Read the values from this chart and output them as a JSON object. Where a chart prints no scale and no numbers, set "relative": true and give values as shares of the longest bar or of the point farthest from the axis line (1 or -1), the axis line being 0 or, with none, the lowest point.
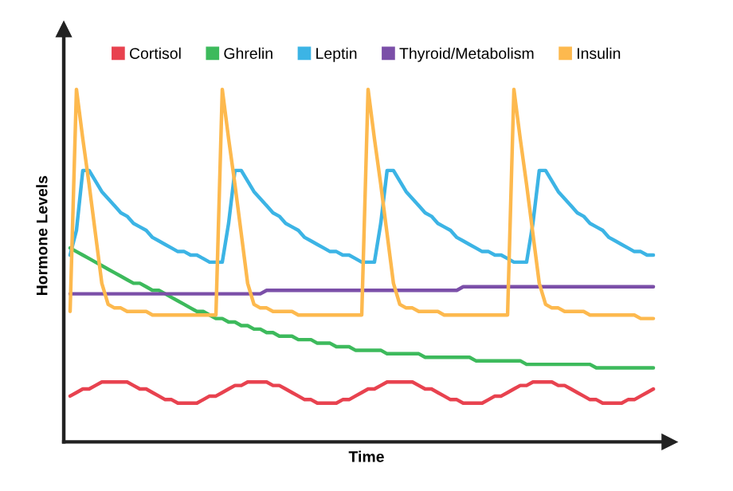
{
  "chart_data": {
    "type": "line",
    "relative": true,
    "xlabel": "Time",
    "ylabel": "Hormone Levels",
    "legend": "top",
    "categories": [
      null,
      null,
      null,
      null,
      null,
      null,
      null,
      null,
      null,
      null,
      null,
      null,
      null,
      null,
      null,
      null,
      null,
      null,
      null,
      null,
      null,
      null,
      null,
      null,
      null,
      null,
      null,
      null,
      null,
      null,
      null,
      null,
      null,
      null,
      null,
      null,
      null,
      null,
      null,
      null,
      null,
      null,
      null,
      null,
      null,
      null,
      null,
      null,
      null,
      null,
      null,
      null,
      null,
      null,
      null,
      null,
      null,
      null,
      null,
      null,
      null,
      null,
      null,
      null,
      null,
      null,
      null,
      null,
      null,
      null,
      null,
      null,
      null,
      null,
      null,
      null,
      null,
      null,
      null,
      null,
      null,
      null,
      null,
      null,
      null,
      null,
      null,
      null,
      null,
      null,
      null,
      null,
      null
    ],
    "series": [
      {
        "name": "Cortisol",
        "color": "#e8424f",
        "values": [
          0.13,
          0.14,
          0.15,
          0.15,
          0.16,
          0.17,
          0.17,
          0.17,
          0.17,
          0.17,
          0.16,
          0.15,
          0.15,
          0.14,
          0.13,
          0.12,
          0.12,
          0.11,
          0.11,
          0.11,
          0.11,
          0.12,
          0.13,
          0.13,
          0.14,
          0.15,
          0.16,
          0.16,
          0.17,
          0.17,
          0.17,
          0.17,
          0.16,
          0.16,
          0.15,
          0.14,
          0.13,
          0.12,
          0.12,
          0.11,
          0.11,
          0.11,
          0.11,
          0.12,
          0.12,
          0.13,
          0.14,
          0.15,
          0.15,
          0.16,
          0.17,
          0.17,
          0.17,
          0.17,
          0.17,
          0.16,
          0.15,
          0.15,
          0.14,
          0.13,
          0.12,
          0.12,
          0.11,
          0.11,
          0.11,
          0.11,
          0.12,
          0.13,
          0.13,
          0.14,
          0.15,
          0.16,
          0.16,
          0.17,
          0.17,
          0.17,
          0.17,
          0.16,
          0.16,
          0.15,
          0.14,
          0.13,
          0.12,
          0.12,
          0.11,
          0.11,
          0.11,
          0.11,
          0.12,
          0.12,
          0.13,
          0.14,
          0.15
        ]
      },
      {
        "name": "Ghrelin",
        "color": "#3dba5c",
        "values": [
          0.55,
          0.54,
          0.53,
          0.52,
          0.51,
          0.5,
          0.49,
          0.48,
          0.47,
          0.46,
          0.45,
          0.45,
          0.44,
          0.43,
          0.43,
          0.42,
          0.41,
          0.4,
          0.39,
          0.38,
          0.37,
          0.37,
          0.36,
          0.35,
          0.35,
          0.34,
          0.34,
          0.33,
          0.33,
          0.32,
          0.32,
          0.31,
          0.31,
          0.3,
          0.3,
          0.3,
          0.29,
          0.29,
          0.29,
          0.28,
          0.28,
          0.28,
          0.27,
          0.27,
          0.27,
          0.26,
          0.26,
          0.26,
          0.26,
          0.26,
          0.25,
          0.25,
          0.25,
          0.25,
          0.25,
          0.25,
          0.24,
          0.24,
          0.24,
          0.24,
          0.24,
          0.24,
          0.24,
          0.24,
          0.23,
          0.23,
          0.23,
          0.23,
          0.23,
          0.23,
          0.23,
          0.23,
          0.22,
          0.22,
          0.22,
          0.22,
          0.22,
          0.22,
          0.22,
          0.22,
          0.22,
          0.22,
          0.22,
          0.21,
          0.21,
          0.21,
          0.21,
          0.21,
          0.21,
          0.21,
          0.21,
          0.21,
          0.21
        ]
      },
      {
        "name": "Leptin",
        "color": "#3cb4e5",
        "values": [
          0.53,
          0.6,
          0.77,
          0.77,
          0.74,
          0.71,
          0.69,
          0.67,
          0.65,
          0.64,
          0.62,
          0.61,
          0.6,
          0.58,
          0.57,
          0.56,
          0.55,
          0.54,
          0.54,
          0.53,
          0.53,
          0.52,
          0.51,
          0.51,
          0.51,
          0.62,
          0.77,
          0.77,
          0.74,
          0.71,
          0.69,
          0.67,
          0.65,
          0.64,
          0.62,
          0.61,
          0.6,
          0.58,
          0.57,
          0.56,
          0.55,
          0.54,
          0.54,
          0.53,
          0.53,
          0.52,
          0.51,
          0.51,
          0.51,
          0.62,
          0.77,
          0.77,
          0.74,
          0.71,
          0.69,
          0.67,
          0.65,
          0.64,
          0.62,
          0.61,
          0.6,
          0.58,
          0.57,
          0.56,
          0.55,
          0.54,
          0.54,
          0.53,
          0.53,
          0.52,
          0.51,
          0.51,
          0.51,
          0.62,
          0.77,
          0.77,
          0.74,
          0.71,
          0.69,
          0.67,
          0.65,
          0.64,
          0.62,
          0.61,
          0.6,
          0.58,
          0.57,
          0.56,
          0.55,
          0.54,
          0.54,
          0.53,
          0.53
        ]
      },
      {
        "name": "Thyroid/Metabolism",
        "color": "#7b4fa8",
        "values": [
          0.42,
          0.42,
          0.42,
          0.42,
          0.42,
          0.42,
          0.42,
          0.42,
          0.42,
          0.42,
          0.42,
          0.42,
          0.42,
          0.42,
          0.42,
          0.42,
          0.42,
          0.42,
          0.42,
          0.42,
          0.42,
          0.42,
          0.42,
          0.42,
          0.42,
          0.42,
          0.42,
          0.42,
          0.42,
          0.42,
          0.42,
          0.43,
          0.43,
          0.43,
          0.43,
          0.43,
          0.43,
          0.43,
          0.43,
          0.43,
          0.43,
          0.43,
          0.43,
          0.43,
          0.43,
          0.43,
          0.43,
          0.43,
          0.43,
          0.43,
          0.43,
          0.43,
          0.43,
          0.43,
          0.43,
          0.43,
          0.43,
          0.43,
          0.43,
          0.43,
          0.43,
          0.43,
          0.44,
          0.44,
          0.44,
          0.44,
          0.44,
          0.44,
          0.44,
          0.44,
          0.44,
          0.44,
          0.44,
          0.44,
          0.44,
          0.44,
          0.44,
          0.44,
          0.44,
          0.44,
          0.44,
          0.44,
          0.44,
          0.44,
          0.44,
          0.44,
          0.44,
          0.44,
          0.44,
          0.44,
          0.44,
          0.44,
          0.44
        ]
      },
      {
        "name": "Insulin",
        "color": "#fdb94e",
        "values": [
          0.37,
          1.0,
          0.86,
          0.73,
          0.59,
          0.45,
          0.39,
          0.38,
          0.38,
          0.37,
          0.37,
          0.37,
          0.37,
          0.36,
          0.36,
          0.36,
          0.36,
          0.36,
          0.36,
          0.36,
          0.36,
          0.36,
          0.36,
          0.36,
          1.0,
          0.86,
          0.73,
          0.59,
          0.45,
          0.39,
          0.38,
          0.38,
          0.37,
          0.37,
          0.37,
          0.37,
          0.36,
          0.36,
          0.36,
          0.36,
          0.36,
          0.36,
          0.36,
          0.36,
          0.36,
          0.36,
          0.36,
          1.0,
          0.86,
          0.73,
          0.59,
          0.45,
          0.39,
          0.38,
          0.38,
          0.37,
          0.37,
          0.37,
          0.37,
          0.36,
          0.36,
          0.36,
          0.36,
          0.36,
          0.36,
          0.36,
          0.36,
          0.36,
          0.36,
          0.36,
          1.0,
          0.86,
          0.73,
          0.59,
          0.45,
          0.39,
          0.38,
          0.38,
          0.37,
          0.37,
          0.37,
          0.37,
          0.36,
          0.36,
          0.36,
          0.36,
          0.36,
          0.36,
          0.36,
          0.36,
          0.35,
          0.35,
          0.35
        ]
      }
    ]
  }
}
